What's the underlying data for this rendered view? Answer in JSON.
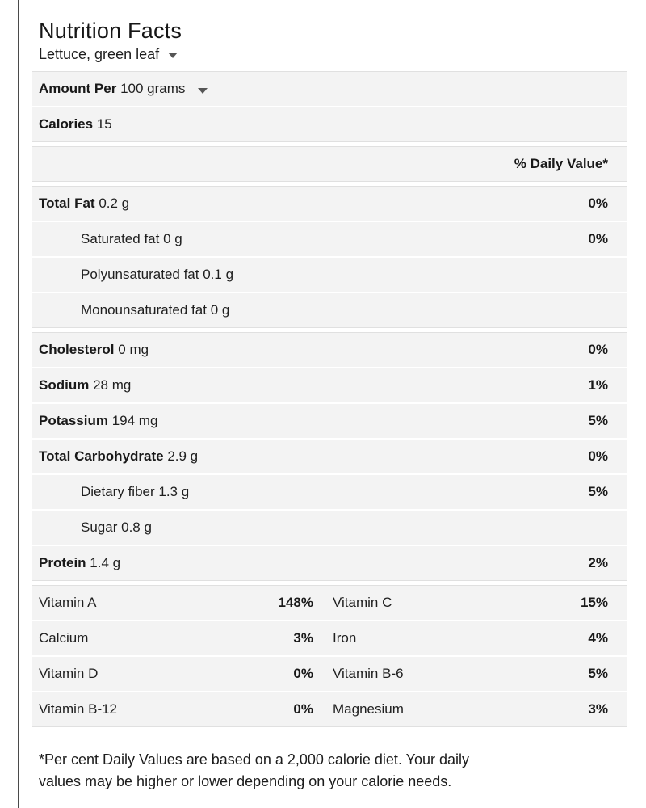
{
  "header": {
    "title": "Nutrition Facts",
    "food_selector": "Lettuce, green leaf"
  },
  "serving": {
    "label": "Amount Per",
    "value": "100 grams"
  },
  "calories": {
    "label": "Calories",
    "value": "15"
  },
  "dv_header": "% Daily Value*",
  "nutrients": [
    {
      "label": "Total Fat",
      "amount": "0.2 g",
      "dv": "0%"
    },
    {
      "label": "Saturated fat",
      "amount": "0 g",
      "dv": "0%"
    },
    {
      "label": "Polyunsaturated fat",
      "amount": "0.1 g",
      "dv": ""
    },
    {
      "label": "Monounsaturated fat",
      "amount": "0 g",
      "dv": ""
    },
    {
      "label": "Cholesterol",
      "amount": "0 mg",
      "dv": "0%"
    },
    {
      "label": "Sodium",
      "amount": "28 mg",
      "dv": "1%"
    },
    {
      "label": "Potassium",
      "amount": "194 mg",
      "dv": "5%"
    },
    {
      "label": "Total Carbohydrate",
      "amount": "2.9 g",
      "dv": "0%"
    },
    {
      "label": "Dietary fiber",
      "amount": "1.3 g",
      "dv": "5%"
    },
    {
      "label": "Sugar",
      "amount": "0.8 g",
      "dv": ""
    },
    {
      "label": "Protein",
      "amount": "1.4 g",
      "dv": "2%"
    }
  ],
  "vitamins": [
    {
      "left_label": "Vitamin A",
      "left_value": "148%",
      "right_label": "Vitamin C",
      "right_value": "15%"
    },
    {
      "left_label": "Calcium",
      "left_value": "3%",
      "right_label": "Iron",
      "right_value": "4%"
    },
    {
      "left_label": "Vitamin D",
      "left_value": "0%",
      "right_label": "Vitamin B-6",
      "right_value": "5%"
    },
    {
      "left_label": "Vitamin B-12",
      "left_value": "0%",
      "right_label": "Magnesium",
      "right_value": "3%"
    }
  ],
  "footnote": {
    "line1": "*Per cent Daily Values are based on a 2,000 calorie diet. Your daily",
    "line2": "values may be higher or lower depending on your calorie needs."
  },
  "colors": {
    "row_background": "#f3f3f3",
    "section_border": "#e0e0e0",
    "text": "#1f1f1f",
    "page_edge_bar": "#4a4a4a"
  },
  "icons": {
    "food_selector_caret": "caret-down-icon",
    "serving_selector_caret": "caret-down-icon"
  }
}
